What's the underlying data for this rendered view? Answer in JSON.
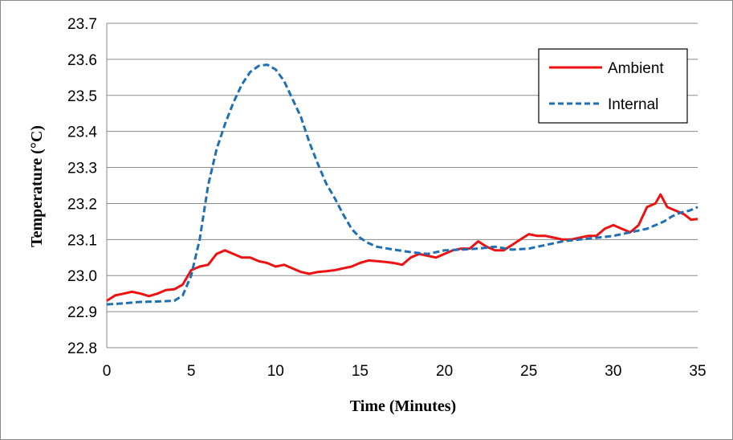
{
  "chart_data": {
    "type": "line",
    "title": "",
    "xlabel": "Time (Minutes)",
    "ylabel": "Temperature (°C)",
    "xlim": [
      0,
      35
    ],
    "ylim": [
      22.8,
      23.7
    ],
    "x_ticks": [
      "0",
      "5",
      "10",
      "15",
      "20",
      "25",
      "30",
      "35"
    ],
    "y_ticks": [
      "22.8",
      "22.9",
      "23.0",
      "23.1",
      "23.2",
      "23.3",
      "23.4",
      "23.5",
      "23.6",
      "23.7"
    ],
    "grid": "horizontal",
    "legend_position": "top-right",
    "series": [
      {
        "name": "Ambient",
        "color": "#ee1111",
        "style": "solid",
        "points": [
          [
            0,
            22.93
          ],
          [
            0.5,
            22.945
          ],
          [
            1,
            22.95
          ],
          [
            1.5,
            22.955
          ],
          [
            2,
            22.95
          ],
          [
            2.5,
            22.943
          ],
          [
            3,
            22.95
          ],
          [
            3.5,
            22.96
          ],
          [
            4,
            22.962
          ],
          [
            4.5,
            22.975
          ],
          [
            5,
            23.015
          ],
          [
            5.5,
            23.025
          ],
          [
            6,
            23.03
          ],
          [
            6.5,
            23.06
          ],
          [
            7,
            23.07
          ],
          [
            7.5,
            23.06
          ],
          [
            8,
            23.05
          ],
          [
            8.5,
            23.05
          ],
          [
            9,
            23.04
          ],
          [
            9.5,
            23.035
          ],
          [
            10,
            23.025
          ],
          [
            10.5,
            23.03
          ],
          [
            11,
            23.02
          ],
          [
            11.5,
            23.01
          ],
          [
            12,
            23.005
          ],
          [
            12.5,
            23.01
          ],
          [
            13,
            23.012
          ],
          [
            13.5,
            23.015
          ],
          [
            14,
            23.02
          ],
          [
            14.5,
            23.025
          ],
          [
            15,
            23.035
          ],
          [
            15.5,
            23.042
          ],
          [
            16,
            23.04
          ],
          [
            16.5,
            23.038
          ],
          [
            17,
            23.035
          ],
          [
            17.5,
            23.03
          ],
          [
            18,
            23.05
          ],
          [
            18.5,
            23.06
          ],
          [
            19,
            23.055
          ],
          [
            19.5,
            23.05
          ],
          [
            20,
            23.06
          ],
          [
            20.5,
            23.07
          ],
          [
            21,
            23.075
          ],
          [
            21.5,
            23.075
          ],
          [
            22,
            23.095
          ],
          [
            22.5,
            23.08
          ],
          [
            23,
            23.07
          ],
          [
            23.5,
            23.07
          ],
          [
            24,
            23.085
          ],
          [
            24.5,
            23.1
          ],
          [
            25,
            23.115
          ],
          [
            25.5,
            23.11
          ],
          [
            26,
            23.11
          ],
          [
            26.5,
            23.105
          ],
          [
            27,
            23.1
          ],
          [
            27.5,
            23.1
          ],
          [
            28,
            23.105
          ],
          [
            28.5,
            23.11
          ],
          [
            29,
            23.11
          ],
          [
            29.5,
            23.13
          ],
          [
            30,
            23.14
          ],
          [
            30.5,
            23.13
          ],
          [
            31,
            23.12
          ],
          [
            31.5,
            23.14
          ],
          [
            32,
            23.19
          ],
          [
            32.5,
            23.2
          ],
          [
            32.8,
            23.225
          ],
          [
            33.2,
            23.19
          ],
          [
            33.7,
            23.18
          ],
          [
            34.2,
            23.17
          ],
          [
            34.6,
            23.155
          ],
          [
            35,
            23.157
          ]
        ]
      },
      {
        "name": "Internal",
        "color": "#1f6fb5",
        "style": "dashed",
        "points": [
          [
            0,
            22.92
          ],
          [
            1,
            22.923
          ],
          [
            2,
            22.927
          ],
          [
            3,
            22.928
          ],
          [
            4,
            22.93
          ],
          [
            4.5,
            22.945
          ],
          [
            5,
            23.0
          ],
          [
            5.5,
            23.1
          ],
          [
            6,
            23.25
          ],
          [
            6.5,
            23.35
          ],
          [
            7,
            23.42
          ],
          [
            7.5,
            23.48
          ],
          [
            8,
            23.53
          ],
          [
            8.5,
            23.565
          ],
          [
            9,
            23.582
          ],
          [
            9.5,
            23.585
          ],
          [
            10,
            23.572
          ],
          [
            10.5,
            23.54
          ],
          [
            11,
            23.49
          ],
          [
            11.5,
            23.44
          ],
          [
            12,
            23.37
          ],
          [
            12.5,
            23.31
          ],
          [
            13,
            23.255
          ],
          [
            13.5,
            23.215
          ],
          [
            14,
            23.17
          ],
          [
            14.5,
            23.13
          ],
          [
            15,
            23.105
          ],
          [
            15.5,
            23.09
          ],
          [
            16,
            23.08
          ],
          [
            17,
            23.072
          ],
          [
            18,
            23.065
          ],
          [
            19,
            23.06
          ],
          [
            20,
            23.07
          ],
          [
            21,
            23.072
          ],
          [
            22,
            23.075
          ],
          [
            23,
            23.08
          ],
          [
            24,
            23.072
          ],
          [
            25,
            23.075
          ],
          [
            26,
            23.085
          ],
          [
            27,
            23.095
          ],
          [
            28,
            23.1
          ],
          [
            29,
            23.105
          ],
          [
            30,
            23.11
          ],
          [
            31,
            23.12
          ],
          [
            32,
            23.13
          ],
          [
            33,
            23.15
          ],
          [
            33.5,
            23.165
          ],
          [
            34,
            23.175
          ],
          [
            34.5,
            23.18
          ],
          [
            35,
            23.19
          ]
        ]
      }
    ]
  }
}
